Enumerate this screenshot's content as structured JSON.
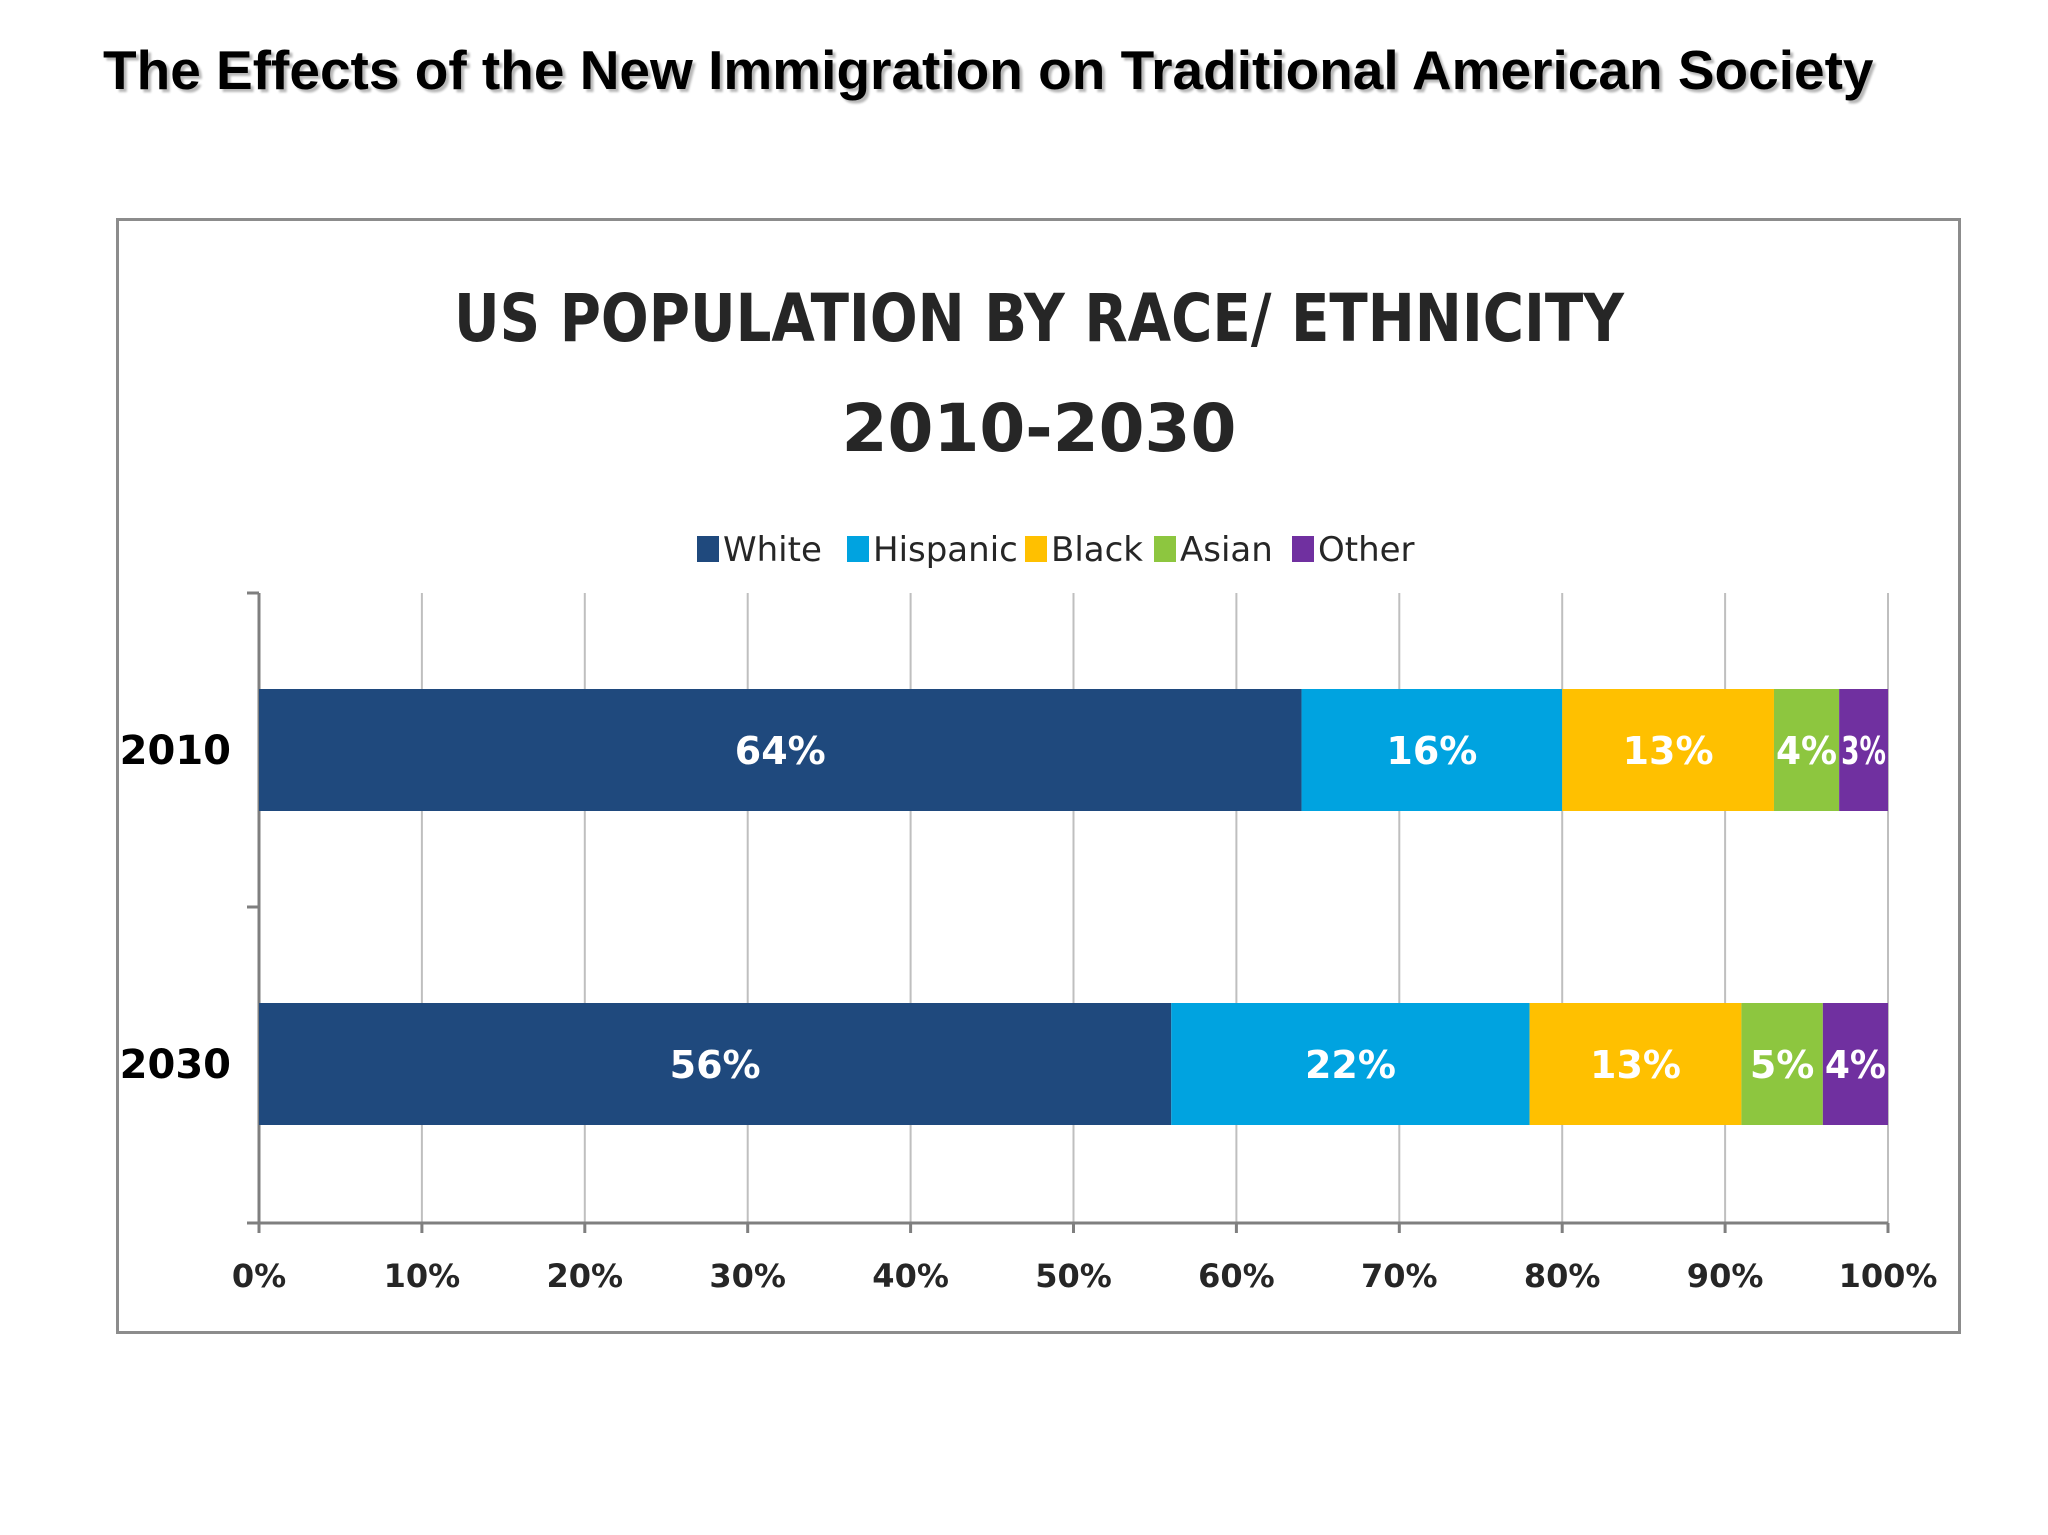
{
  "slide": {
    "title": "The Effects of the New Immigration on Traditional American Society"
  },
  "chart_data": {
    "type": "bar",
    "orientation": "horizontal",
    "stacked": true,
    "title": "US POPULATION BY RACE/ ETHNICITY",
    "subtitle": "2010-2030",
    "categories": [
      "2010",
      "2030"
    ],
    "series": [
      {
        "name": "White",
        "color": "#1f497d",
        "values": [
          64,
          56
        ],
        "labels": [
          "64%",
          "56%"
        ]
      },
      {
        "name": "Hispanic",
        "color": "#00a3e0",
        "values": [
          16,
          22
        ],
        "labels": [
          "16%",
          "22%"
        ]
      },
      {
        "name": "Black",
        "color": "#ffc000",
        "values": [
          13,
          13
        ],
        "labels": [
          "13%",
          "13%"
        ]
      },
      {
        "name": "Asian",
        "color": "#8dc63f",
        "values": [
          4,
          5
        ],
        "labels": [
          "4%",
          "5%"
        ]
      },
      {
        "name": "Other",
        "color": "#7030a0",
        "values": [
          3,
          4
        ],
        "labels": [
          "3%",
          "4%"
        ]
      }
    ],
    "xlim": [
      0,
      100
    ],
    "xticks": [
      "0%",
      "10%",
      "20%",
      "30%",
      "40%",
      "50%",
      "60%",
      "70%",
      "80%",
      "90%",
      "100%"
    ],
    "grid": true,
    "legend_position": "top"
  }
}
